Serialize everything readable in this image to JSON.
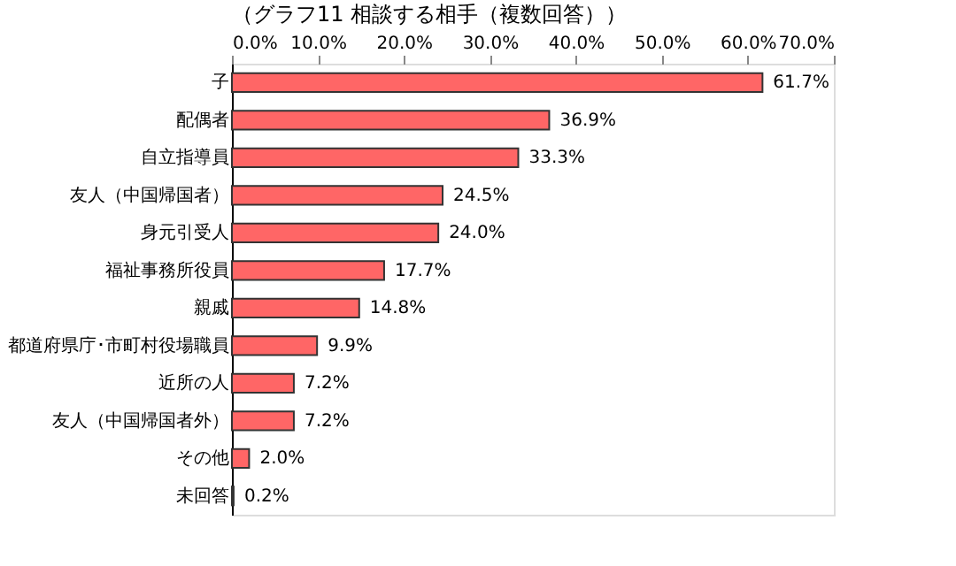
{
  "chart_data": {
    "type": "bar",
    "orientation": "horizontal",
    "title": "（グラフ11 相談する相手（複数回答））",
    "categories": [
      "子",
      "配偶者",
      "自立指導員",
      "友人（中国帰国者）",
      "身元引受人",
      "福祉事務所役員",
      "親戚",
      "都道府県庁･市町村役場職員",
      "近所の人",
      "友人（中国帰国者外）",
      "その他",
      "未回答"
    ],
    "values": [
      61.7,
      36.9,
      33.3,
      24.5,
      24.0,
      17.7,
      14.8,
      9.9,
      7.2,
      7.2,
      2.0,
      0.2
    ],
    "value_labels": [
      "61.7%",
      "36.9%",
      "33.3%",
      "24.5%",
      "24.0%",
      "17.7%",
      "14.8%",
      "9.9%",
      "7.2%",
      "7.2%",
      "2.0%",
      "0.2%"
    ],
    "color": "#ff6666",
    "xlim": [
      0,
      70
    ],
    "xticks": [
      {
        "value": 0,
        "label": "0.0%"
      },
      {
        "value": 10,
        "label": "10.0%"
      },
      {
        "value": 20,
        "label": "20.0%"
      },
      {
        "value": 30,
        "label": "30.0%"
      },
      {
        "value": 40,
        "label": "40.0%"
      },
      {
        "value": 50,
        "label": "50.0%"
      },
      {
        "value": 60,
        "label": "60.0%"
      },
      {
        "value": 70,
        "label": "70.0%"
      }
    ],
    "grid": false
  }
}
